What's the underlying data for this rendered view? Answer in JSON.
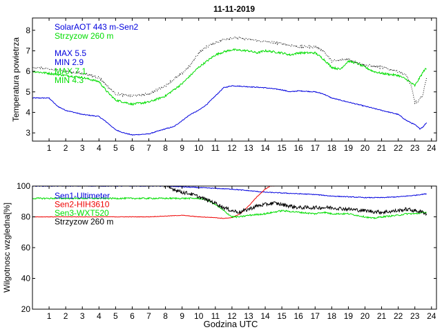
{
  "title": "11-11-2019",
  "xlabel": "Godzina UTC",
  "colors": {
    "blue": "#0000dd",
    "green": "#00dd00",
    "red": "#ee0000",
    "black": "#000000",
    "dotted": "#000000"
  },
  "chart_data": [
    {
      "type": "line",
      "ylabel": "Temperatura powietrza",
      "xlim": [
        0,
        24.3
      ],
      "ylim": [
        2.6,
        8.6
      ],
      "xticks": [
        1,
        2,
        3,
        4,
        5,
        6,
        7,
        8,
        9,
        10,
        11,
        12,
        13,
        14,
        15,
        16,
        17,
        18,
        19,
        20,
        21,
        22,
        23,
        24
      ],
      "yticks": [
        3,
        4,
        5,
        6,
        7,
        8
      ],
      "legend": [
        {
          "text": "SolarAOT 443 m-Sen2",
          "color": "blue"
        },
        {
          "text": "Strzyzow 260 m",
          "color": "green"
        }
      ],
      "stats": [
        {
          "text": "MAX 5.5",
          "color": "blue"
        },
        {
          "text": "MIN 2.9",
          "color": "blue"
        },
        {
          "text": "MAX 7.1",
          "color": "green"
        },
        {
          "text": "MIN 4.3",
          "color": "green"
        }
      ],
      "series": [
        {
          "name": "SolarAOT 443 m-Sen2",
          "color": "blue",
          "style": "solid",
          "noise": 0.02,
          "x": [
            0,
            1,
            1.5,
            2,
            3,
            4,
            4.5,
            5,
            5.5,
            6,
            7,
            8,
            8.5,
            9,
            9.5,
            10,
            10.5,
            11,
            11.5,
            12,
            13,
            14,
            15,
            15.5,
            16,
            17,
            17.5,
            18,
            19,
            20,
            20.5,
            21,
            22,
            22.5,
            23,
            23.3,
            23.5,
            23.7
          ],
          "y": [
            4.7,
            4.7,
            4.3,
            4.1,
            3.9,
            3.8,
            3.5,
            3.15,
            3.0,
            2.9,
            2.95,
            3.2,
            3.3,
            3.6,
            3.9,
            4.1,
            4.4,
            4.8,
            5.2,
            5.3,
            5.25,
            5.2,
            5.1,
            5.0,
            5.05,
            5.0,
            4.9,
            4.7,
            4.5,
            4.3,
            4.2,
            4.1,
            3.9,
            3.6,
            3.4,
            3.2,
            3.3,
            3.5
          ]
        },
        {
          "name": "Strzyzow 260 m",
          "color": "green",
          "style": "solid",
          "noise": 0.05,
          "x": [
            0,
            1,
            2,
            3,
            4,
            4.5,
            5,
            5.5,
            6,
            7,
            8,
            9,
            9.5,
            10,
            10.5,
            11,
            11.5,
            12,
            13,
            13.5,
            14,
            15,
            15.5,
            16,
            17,
            17.5,
            18,
            18.5,
            19,
            19.5,
            20,
            20.5,
            21,
            22,
            22.5,
            23,
            23.3,
            23.6,
            23.7
          ],
          "y": [
            6.0,
            5.9,
            5.8,
            5.7,
            5.5,
            5.0,
            4.6,
            4.5,
            4.4,
            4.5,
            4.8,
            5.4,
            5.8,
            6.2,
            6.5,
            6.8,
            6.95,
            7.05,
            7.0,
            6.9,
            7.0,
            6.9,
            6.8,
            6.9,
            6.9,
            6.6,
            6.2,
            6.1,
            6.5,
            6.4,
            6.2,
            6.0,
            5.9,
            5.8,
            5.6,
            5.3,
            5.7,
            6.1,
            6.1
          ]
        },
        {
          "name": "unlabeled dotted",
          "color": "dotted",
          "style": "dotted",
          "noise": 0.06,
          "x": [
            0,
            1,
            2,
            3,
            4,
            4.5,
            5,
            5.5,
            6,
            7,
            8,
            9,
            9.5,
            10,
            10.5,
            11,
            11.5,
            12,
            13,
            14,
            15,
            16,
            17,
            17.5,
            18,
            19,
            20,
            21,
            22,
            22.5,
            22.8,
            23,
            23.2,
            23.5,
            23.7
          ],
          "y": [
            6.2,
            6.1,
            6.0,
            5.9,
            5.7,
            5.3,
            4.9,
            4.85,
            4.8,
            4.9,
            5.3,
            5.9,
            6.3,
            6.9,
            7.2,
            7.4,
            7.55,
            7.65,
            7.55,
            7.45,
            7.35,
            7.2,
            7.2,
            7.0,
            6.5,
            6.6,
            6.3,
            6.2,
            6.0,
            5.8,
            5.2,
            4.5,
            4.5,
            4.9,
            5.7
          ]
        }
      ]
    },
    {
      "type": "line",
      "ylabel": "Wilgotnosc wzgledna[%]",
      "xlim": [
        0,
        24.3
      ],
      "ylim": [
        20,
        100
      ],
      "xticks": [
        1,
        2,
        3,
        4,
        5,
        6,
        7,
        8,
        9,
        10,
        11,
        12,
        13,
        14,
        15,
        16,
        17,
        18,
        19,
        20,
        21,
        22,
        23,
        24
      ],
      "yticks": [
        20,
        40,
        60,
        80,
        100
      ],
      "legend": [
        {
          "text": "Sen1-Ultimeter",
          "color": "blue"
        },
        {
          "text": "Sen2-HIH3610",
          "color": "red"
        },
        {
          "text": "Sen3-WXT520",
          "color": "green"
        },
        {
          "text": "Strzyzow 260 m",
          "color": "black"
        }
      ],
      "series": [
        {
          "name": "Sen1-Ultimeter",
          "color": "blue",
          "style": "solid",
          "noise": 0.25,
          "x": [
            0,
            7,
            8,
            9,
            10,
            11,
            12,
            13,
            14,
            15,
            16,
            17,
            18,
            19,
            20,
            21,
            22,
            22.5,
            23,
            23.7
          ],
          "y": [
            100,
            100,
            100,
            99.5,
            99,
            98.5,
            98,
            97,
            96,
            95.5,
            95,
            94.5,
            93.5,
            93,
            92.5,
            92.5,
            93,
            93.5,
            94,
            95
          ]
        },
        {
          "name": "Sen2-HIH3610",
          "color": "red",
          "style": "solid",
          "noise": 0.15,
          "x": [
            0,
            4,
            5,
            6,
            7,
            8,
            9,
            10,
            11,
            11.5,
            12,
            12.5,
            13,
            13.5,
            14,
            14.3,
            14.6
          ],
          "y": [
            80,
            80,
            80,
            80,
            80,
            80.5,
            81,
            80,
            79.5,
            79,
            79.5,
            82,
            87,
            93,
            98,
            100,
            100
          ]
        },
        {
          "name": "Sen3-WXT520",
          "color": "green",
          "style": "solid",
          "noise": 0.5,
          "x": [
            0,
            7,
            8,
            9,
            10,
            10.5,
            11,
            11.5,
            12,
            12.5,
            13,
            14,
            15,
            16,
            17,
            17.5,
            18,
            19,
            20,
            20.5,
            21,
            22,
            22.5,
            23,
            23.7
          ],
          "y": [
            92,
            92,
            92,
            92,
            92,
            91,
            88,
            84,
            80,
            80,
            81,
            82,
            84,
            83,
            82,
            83,
            82,
            82,
            80,
            79,
            80,
            81,
            82,
            82,
            83
          ]
        },
        {
          "name": "Strzyzow 260 m",
          "color": "black",
          "style": "solid",
          "noise": 1.2,
          "x": [
            7.9,
            8.5,
            9,
            9.5,
            10,
            10.5,
            11,
            11.5,
            12,
            12.5,
            13,
            13.5,
            14,
            14.5,
            15,
            15.5,
            16,
            17,
            18,
            19,
            20,
            21,
            22,
            22.5,
            23,
            23.5,
            23.7
          ],
          "y": [
            100,
            98,
            96,
            95,
            93,
            91,
            89,
            86,
            84,
            83,
            85,
            87,
            88,
            89,
            88,
            87,
            86,
            86,
            86,
            85,
            84,
            83,
            84,
            85,
            84,
            83,
            82
          ]
        }
      ]
    }
  ]
}
